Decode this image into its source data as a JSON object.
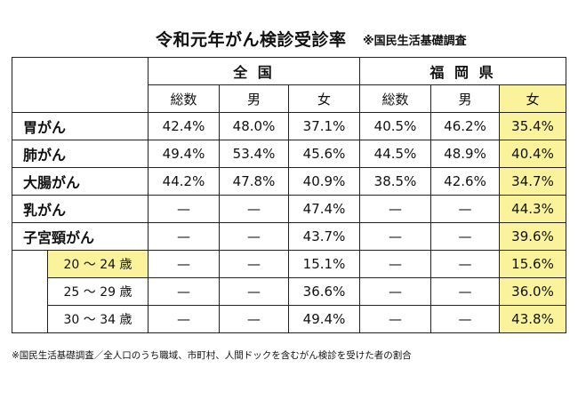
{
  "title": "令和元年がん検診受診率",
  "source": "※国民生活基礎調査",
  "groups": {
    "national": "全 国",
    "fukuoka": "福 岡 県"
  },
  "subheaders": [
    "総数",
    "男",
    "女",
    "総数",
    "男",
    "女"
  ],
  "rows": [
    {
      "label": "胃がん",
      "values": [
        "42.4%",
        "48.0%",
        "37.1%",
        "40.5%",
        "46.2%",
        "35.4%"
      ]
    },
    {
      "label": "肺がん",
      "values": [
        "49.4%",
        "53.4%",
        "45.6%",
        "44.5%",
        "48.9%",
        "40.4%"
      ]
    },
    {
      "label": "大腸がん",
      "values": [
        "44.2%",
        "47.8%",
        "40.9%",
        "38.5%",
        "42.6%",
        "34.7%"
      ]
    },
    {
      "label": "乳がん",
      "values": [
        "—",
        "—",
        "47.4%",
        "—",
        "—",
        "44.3%"
      ]
    },
    {
      "label": "子宮頸がん",
      "values": [
        "—",
        "—",
        "43.7%",
        "—",
        "—",
        "39.6%"
      ]
    }
  ],
  "subrows": [
    {
      "label": "20 ～ 24 歳",
      "values": [
        "—",
        "—",
        "15.1%",
        "—",
        "—",
        "15.6%"
      ]
    },
    {
      "label": "25 ～ 29 歳",
      "values": [
        "—",
        "—",
        "36.6%",
        "—",
        "—",
        "36.0%"
      ]
    },
    {
      "label": "30 ～ 34 歳",
      "values": [
        "—",
        "—",
        "49.4%",
        "—",
        "—",
        "43.8%"
      ]
    }
  ],
  "note": "※国民生活基礎調査／全人口のうち職域、市町村、人間ドックを含むがん検診を受けた者の割合",
  "colors": {
    "highlight": "#fbf39b",
    "border": "#222222"
  }
}
